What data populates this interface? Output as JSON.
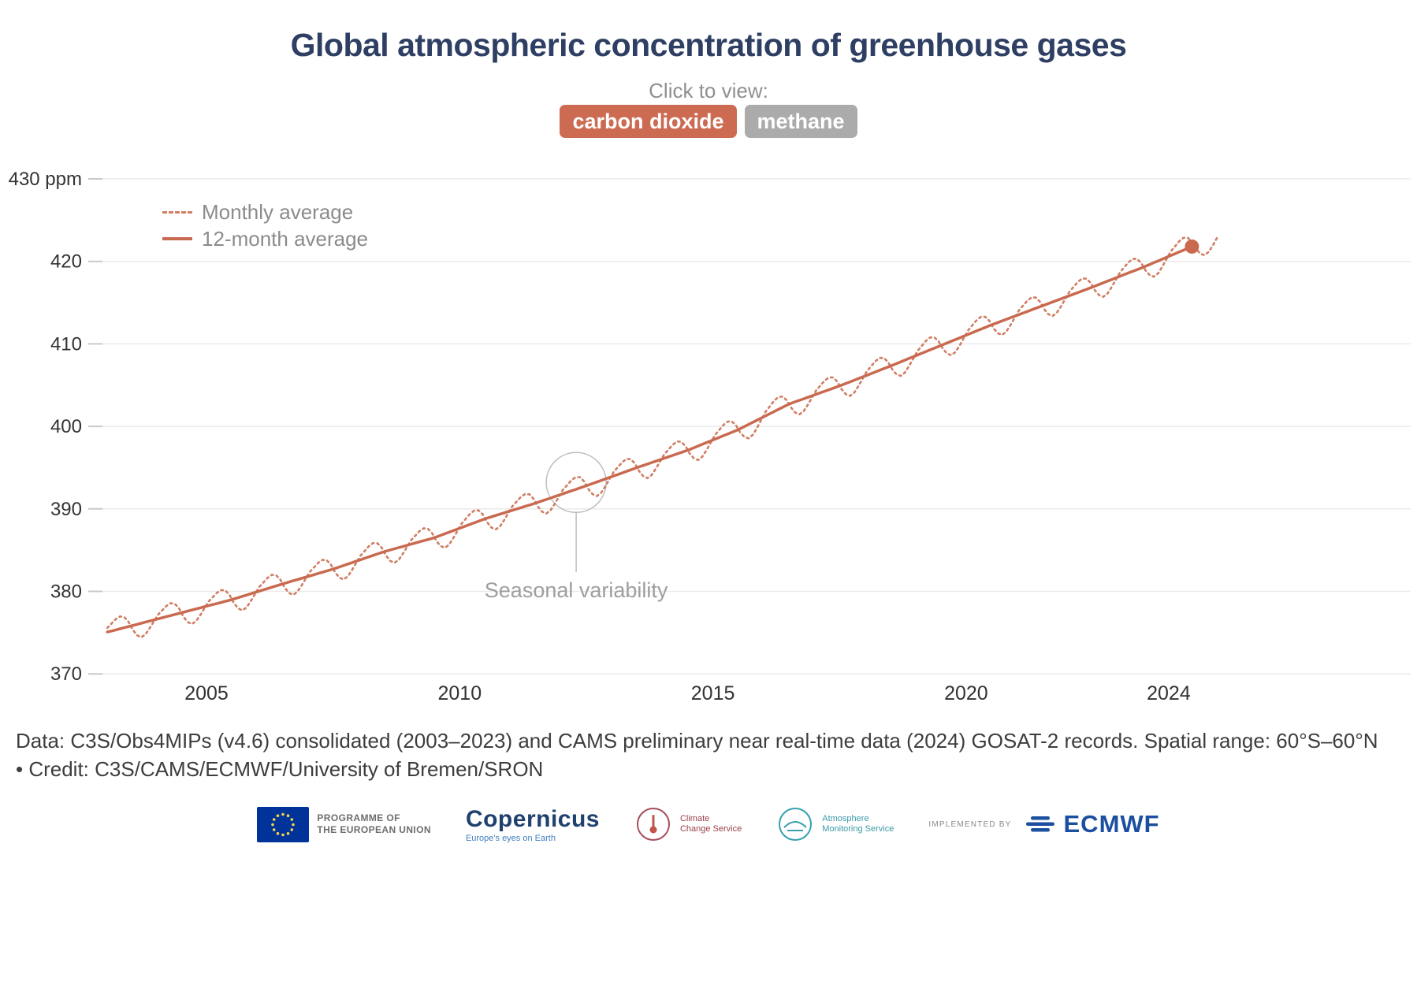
{
  "header": {
    "title": "Global atmospheric concentration of greenhouse gases",
    "subtitle": "Click to view:",
    "buttons": [
      {
        "label": "carbon dioxide",
        "active": true
      },
      {
        "label": "methane",
        "active": false
      }
    ]
  },
  "colors": {
    "accent_active_button": "#cc6b52",
    "inactive_button": "#ababab",
    "title": "#2e3f63",
    "monthly_line": "#d07e64",
    "twelve_month_line": "#c96a50",
    "grid": "#eaeaea",
    "muted_text": "#8f8f8f"
  },
  "chart_data": {
    "type": "line",
    "title": "Global atmospheric concentration of greenhouse gases",
    "unit": "ppm",
    "ylim": [
      370,
      430
    ],
    "grid": true,
    "legend_position": "top-left",
    "yticks": [
      {
        "value": 430,
        "label": "430 ppm"
      },
      {
        "value": 420,
        "label": "420"
      },
      {
        "value": 410,
        "label": "410"
      },
      {
        "value": 400,
        "label": "400"
      },
      {
        "value": 390,
        "label": "390"
      },
      {
        "value": 380,
        "label": "380"
      },
      {
        "value": 370,
        "label": "370"
      }
    ],
    "xticks": [
      {
        "value": 2005,
        "label": "2005"
      },
      {
        "value": 2010,
        "label": "2010"
      },
      {
        "value": 2015,
        "label": "2015"
      },
      {
        "value": 2020,
        "label": "2020"
      },
      {
        "value": 2024,
        "label": "2024"
      }
    ],
    "x_range": [
      2002.8,
      2025.4
    ],
    "series": [
      {
        "name": "Monthly average",
        "style": "dotted",
        "color": "#d07e64"
      },
      {
        "name": "12-month average",
        "style": "solid",
        "color": "#c96a50"
      }
    ],
    "annual_12_month_average": {
      "years": [
        2003,
        2004,
        2005,
        2006,
        2007,
        2008,
        2009,
        2010,
        2011,
        2012,
        2013,
        2014,
        2015,
        2016,
        2017,
        2018,
        2019,
        2020,
        2021,
        2022,
        2023,
        2024
      ],
      "values": [
        375.8,
        377.4,
        379.0,
        380.9,
        382.7,
        384.8,
        386.5,
        388.8,
        390.7,
        392.8,
        395.0,
        397.1,
        399.6,
        402.7,
        404.9,
        407.3,
        409.8,
        412.3,
        414.6,
        416.9,
        419.3,
        421.9
      ]
    },
    "seasonal_cycle_ppm": [
      0.5,
      0.9,
      1.3,
      1.5,
      1.3,
      0.6,
      -0.5,
      -1.3,
      -1.7,
      -1.5,
      -0.9,
      -0.2
    ],
    "monthly_range": [
      2003.0,
      2025.0
    ],
    "smooth_range": [
      2003.042,
      2024.46
    ],
    "latest_12_month_average": 421.9,
    "annotation": {
      "label": "Seasonal variability",
      "year": 2012.3,
      "value": 393.2,
      "circle_radius": 38,
      "label_line_end_y": 726
    }
  },
  "footer": {
    "line1": "Data: C3S/Obs4MIPs (v4.6) consolidated (2003–2023) and CAMS preliminary near real-time data (2024) GOSAT-2 records. Spatial range: 60°S–60°N",
    "line2": "• Credit: C3S/CAMS/ECMWF/University of Bremen/SRON"
  },
  "logos": {
    "eu": {
      "line1": "PROGRAMME OF",
      "line2": "THE EUROPEAN UNION"
    },
    "copernicus": {
      "name": "Copernicus",
      "tagline": "Europe's eyes on Earth"
    },
    "c3s": {
      "line1": "Climate",
      "line2": "Change Service"
    },
    "cams": {
      "line1": "Atmosphere",
      "line2": "Monitoring Service"
    },
    "ecmwf": {
      "prefix": "IMPLEMENTED BY",
      "name": "ECMWF"
    }
  }
}
